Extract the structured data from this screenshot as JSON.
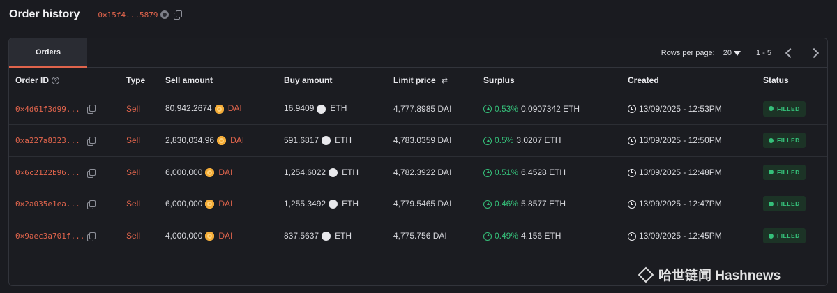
{
  "header": {
    "title": "Order history",
    "address": "0×15f4...5879"
  },
  "tabs": [
    {
      "label": "Orders",
      "active": true
    }
  ],
  "pager": {
    "rows_label": "Rows per page:",
    "rows_value": "20",
    "range": "1 - 5"
  },
  "columns": {
    "order_id": "Order ID",
    "type": "Type",
    "sell_amount": "Sell amount",
    "buy_amount": "Buy amount",
    "limit_price": "Limit price",
    "surplus": "Surplus",
    "created": "Created",
    "status": "Status"
  },
  "orders": [
    {
      "id": "0×4d61f3d99...",
      "type": "Sell",
      "sell_amount": "80,942.2674",
      "sell_token": "DAI",
      "buy_amount": "16.9409",
      "buy_token": "ETH",
      "limit_price": "4,777.8985 DAI",
      "surplus_pct": "0.53%",
      "surplus_amount": "0.0907342 ETH",
      "created": "13/09/2025 - 12:53PM",
      "status": "FILLED"
    },
    {
      "id": "0xa227a8323...",
      "type": "Sell",
      "sell_amount": "2,830,034.96",
      "sell_token": "DAI",
      "buy_amount": "591.6817",
      "buy_token": "ETH",
      "limit_price": "4,783.0359 DAI",
      "surplus_pct": "0.5%",
      "surplus_amount": "3.0207 ETH",
      "created": "13/09/2025 - 12:50PM",
      "status": "FILLED"
    },
    {
      "id": "0×6c2122b96...",
      "type": "Sell",
      "sell_amount": "6,000,000",
      "sell_token": "DAI",
      "buy_amount": "1,254.6022",
      "buy_token": "ETH",
      "limit_price": "4,782.3922 DAI",
      "surplus_pct": "0.51%",
      "surplus_amount": "6.4528 ETH",
      "created": "13/09/2025 - 12:48PM",
      "status": "FILLED"
    },
    {
      "id": "0×2a035e1ea...",
      "type": "Sell",
      "sell_amount": "6,000,000",
      "sell_token": "DAI",
      "buy_amount": "1,255.3492",
      "buy_token": "ETH",
      "limit_price": "4,779.5465 DAI",
      "surplus_pct": "0.46%",
      "surplus_amount": "5.8577 ETH",
      "created": "13/09/2025 - 12:47PM",
      "status": "FILLED"
    },
    {
      "id": "0×9aec3a701f...",
      "type": "Sell",
      "sell_amount": "4,000,000",
      "sell_token": "DAI",
      "buy_amount": "837.5637",
      "buy_token": "ETH",
      "limit_price": "4,775.756 DAI",
      "surplus_pct": "0.49%",
      "surplus_amount": "4.156 ETH",
      "created": "13/09/2025 - 12:45PM",
      "status": "FILLED"
    }
  ],
  "footer": {
    "rows_text": "Rows p"
  },
  "watermark": "哈世链闻 Hashnews",
  "colors": {
    "accent": "#e0644c",
    "success": "#35c07a",
    "background": "#1a1b20"
  }
}
